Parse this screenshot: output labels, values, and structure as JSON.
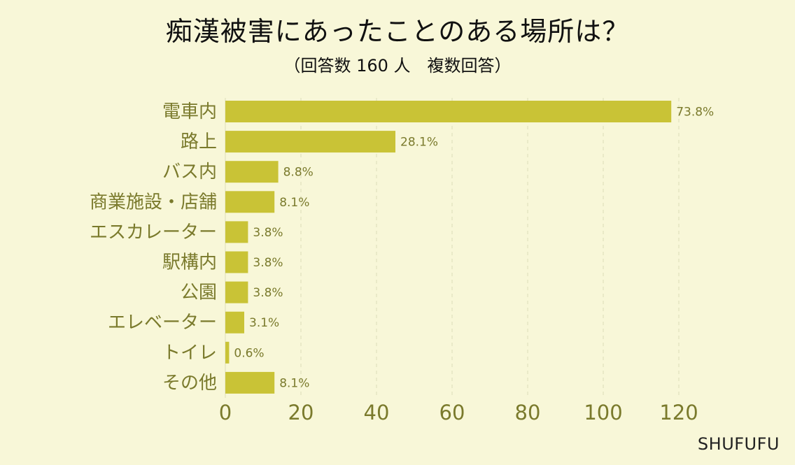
{
  "title": "痴漢被害にあったことのある場所は？",
  "subtitle": "（回答数 160 人　複数回答）",
  "brand": "SHUFUFU",
  "colors": {
    "background": "#f8f7d8",
    "bar": "#c9c336",
    "label": "#7a7a2c",
    "grid": "#dcdcb8"
  },
  "chart_data": {
    "type": "bar",
    "orientation": "horizontal",
    "categories": [
      "電車内",
      "路上",
      "バス内",
      "商業施設・店舗",
      "エスカレーター",
      "駅構内",
      "公園",
      "エレベーター",
      "トイレ",
      "その他"
    ],
    "values": [
      118,
      45,
      14,
      13,
      6,
      6,
      6,
      5,
      1,
      13
    ],
    "data_labels": [
      "73.8%",
      "28.1%",
      "8.8%",
      "8.1%",
      "3.8%",
      "3.8%",
      "3.8%",
      "3.1%",
      "0.6%",
      "8.1%"
    ],
    "xlim": [
      0,
      120
    ],
    "xticks": [
      0,
      20,
      40,
      60,
      80,
      100,
      120
    ],
    "grid": true
  }
}
